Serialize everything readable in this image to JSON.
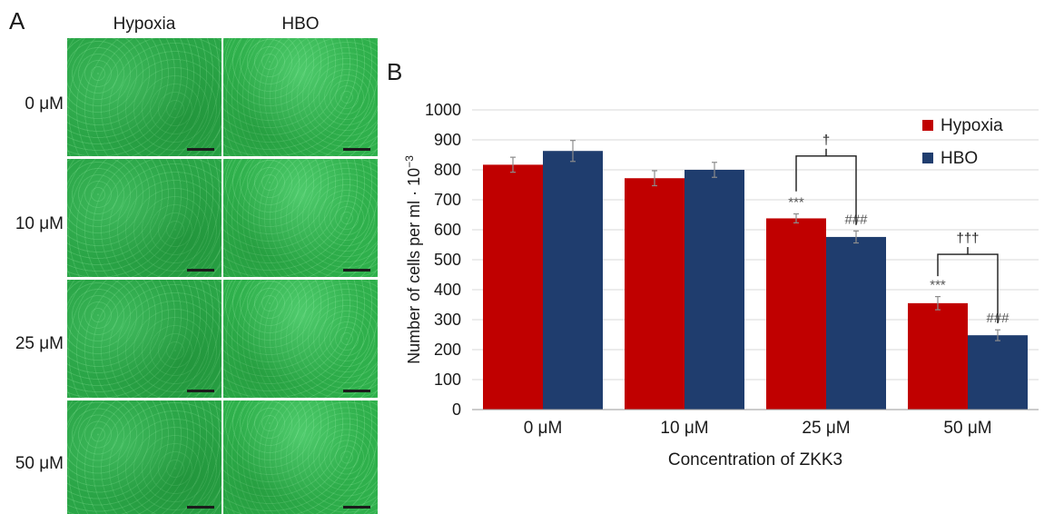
{
  "panel_a": {
    "letter": "A",
    "columns": [
      "Hypoxia",
      "HBO"
    ],
    "rows": [
      "0 μM",
      "10 μM",
      "25 μM",
      "50 μM"
    ]
  },
  "chart_data": {
    "type": "bar",
    "panel_letter": "B",
    "categories": [
      "0 μM",
      "10 μM",
      "25 μM",
      "50 μM"
    ],
    "series": [
      {
        "name": "Hypoxia",
        "color": "#c00000",
        "values": [
          817,
          772,
          638,
          355
        ],
        "errors": [
          25,
          25,
          15,
          22
        ]
      },
      {
        "name": "HBO",
        "color": "#1f3d6e",
        "values": [
          863,
          800,
          576,
          248
        ],
        "errors": [
          35,
          25,
          20,
          18
        ]
      }
    ],
    "xlabel": "Concentration of ZKK3",
    "ylabel": "Number of cells per ml · 10",
    "ylabel_exponent": "−3",
    "ylim": [
      0,
      1000
    ],
    "yticks": [
      0,
      100,
      200,
      300,
      400,
      500,
      600,
      700,
      800,
      900,
      1000
    ],
    "grid": true,
    "legend_position": "top-right",
    "annotations": {
      "hypoxia_marks": [
        "",
        "",
        "***",
        "***"
      ],
      "hbo_marks": [
        "",
        "",
        "###",
        "###"
      ],
      "comparisons": [
        {
          "category_index": 2,
          "label": "†"
        },
        {
          "category_index": 3,
          "label": "†††"
        }
      ]
    }
  }
}
